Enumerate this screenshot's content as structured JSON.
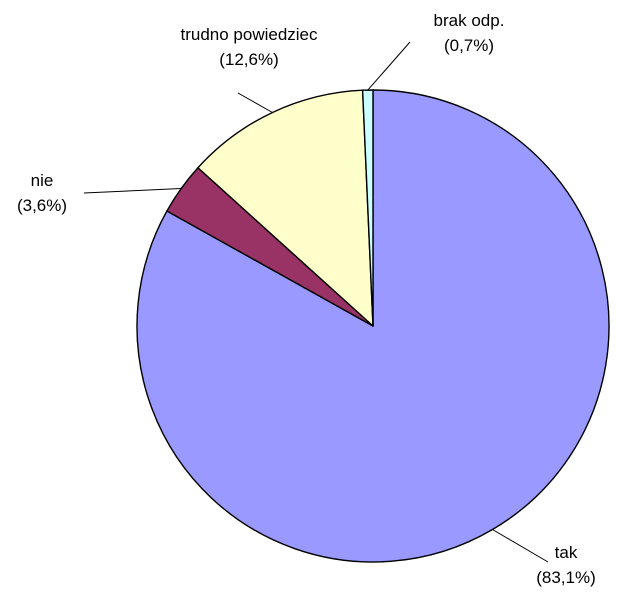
{
  "chart_data": {
    "type": "pie",
    "title": "",
    "slices": [
      {
        "label": "tak",
        "value": 83.1,
        "value_label": "(83,1%)",
        "color": "#9999ff"
      },
      {
        "label": "nie",
        "value": 3.6,
        "value_label": "(3,6%)",
        "color": "#993366"
      },
      {
        "label": "trudno powiedziec",
        "value": 12.6,
        "value_label": "(12,6%)",
        "color": "#ffffcc"
      },
      {
        "label": "brak odp.",
        "value": 0.7,
        "value_label": "(0,7%)",
        "color": "#ccffff"
      }
    ],
    "start_angle_deg": 0,
    "direction": "clockwise",
    "legend": "none"
  }
}
